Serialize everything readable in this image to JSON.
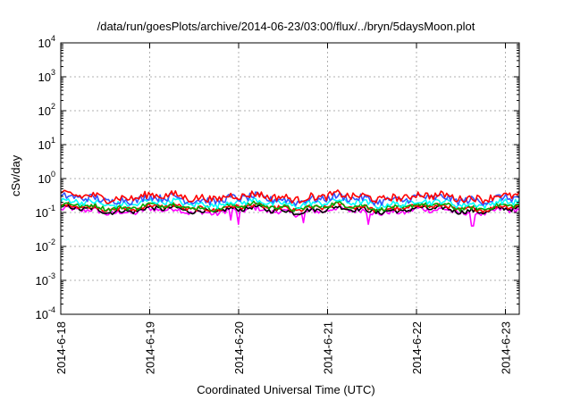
{
  "chart_data": {
    "type": "line",
    "title": "/data/run/goesPlots/archive/2014-06-23/03:00/flux/../bryn/5daysMoon.plot",
    "xlabel": "Coordinated Universal Time (UTC)",
    "ylabel": "cSv/day",
    "yscale": "log",
    "ylim": [
      0.0001,
      10000
    ],
    "xlim": [
      "2014-6-18",
      "2014-6-23 06:00"
    ],
    "grid": true,
    "x_ticks": [
      "2014-6-18",
      "2014-6-19",
      "2014-6-20",
      "2014-6-21",
      "2014-6-22",
      "2014-6-23"
    ],
    "y_ticks": [
      {
        "base": "10",
        "exp": "-4",
        "value": 0.0001
      },
      {
        "base": "10",
        "exp": "-3",
        "value": 0.001
      },
      {
        "base": "10",
        "exp": "-2",
        "value": 0.01
      },
      {
        "base": "10",
        "exp": "-1",
        "value": 0.1
      },
      {
        "base": "10",
        "exp": "0",
        "value": 1
      },
      {
        "base": "10",
        "exp": "1",
        "value": 10
      },
      {
        "base": "10",
        "exp": "2",
        "value": 100
      },
      {
        "base": "10",
        "exp": "3",
        "value": 1000
      },
      {
        "base": "10",
        "exp": "4",
        "value": 10000
      }
    ],
    "series": [
      {
        "color": "#ff00ff",
        "level": 0.11,
        "noise": 0.07,
        "dips": [
          {
            "day": 1.92,
            "value": 0.06
          },
          {
            "day": 2.0,
            "value": 0.045
          },
          {
            "day": 2.72,
            "value": 0.05
          },
          {
            "day": 3.46,
            "value": 0.045
          },
          {
            "day": 4.63,
            "value": 0.04
          }
        ]
      },
      {
        "color": "#000000",
        "level": 0.12,
        "noise": 0.06,
        "dips": []
      },
      {
        "color": "#ff0000",
        "level": 0.14,
        "noise": 0.06,
        "dips": []
      },
      {
        "color": "#00aa00",
        "level": 0.15,
        "noise": 0.06,
        "dips": []
      },
      {
        "color": "#00ffff",
        "level": 0.19,
        "noise": 0.08,
        "dips": []
      },
      {
        "color": "#3355ff",
        "level": 0.25,
        "noise": 0.1,
        "dips": []
      },
      {
        "color": "#ff0000",
        "level": 0.29,
        "noise": 0.1,
        "dips": []
      }
    ]
  }
}
